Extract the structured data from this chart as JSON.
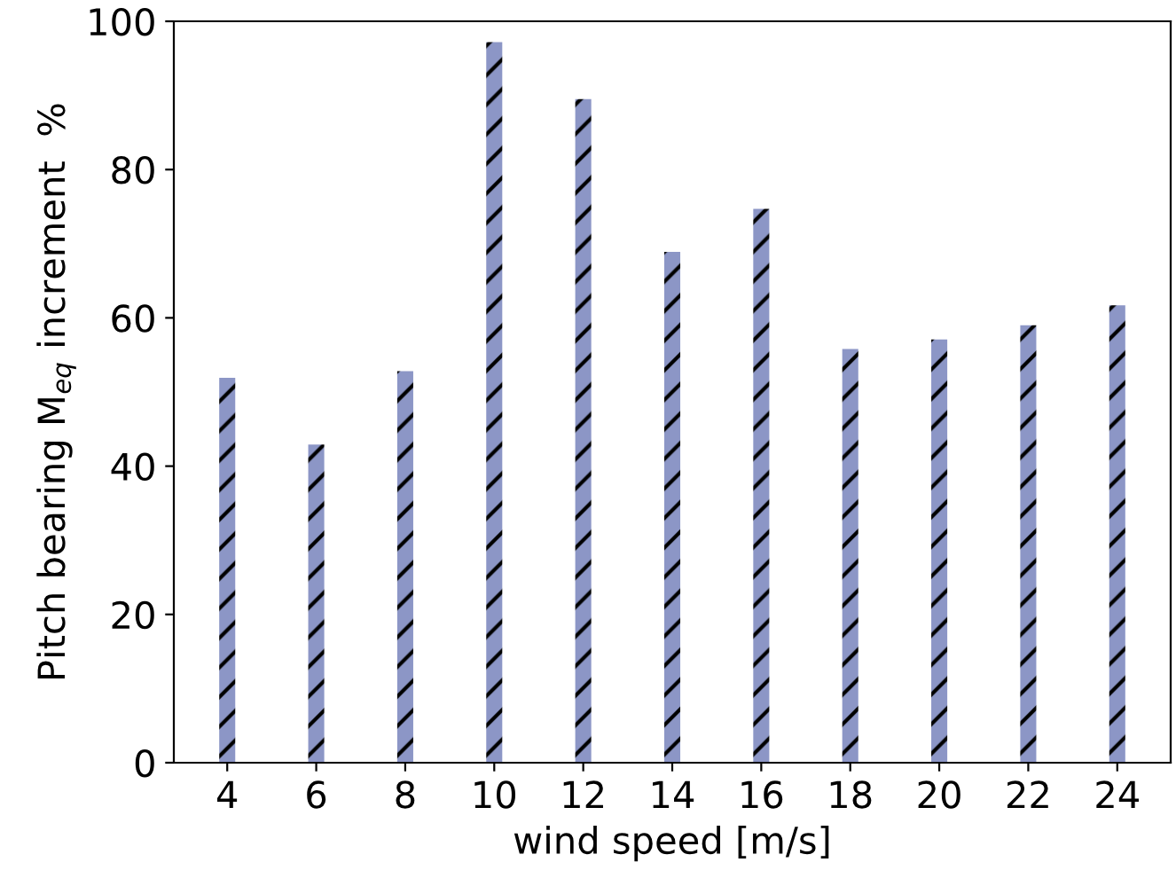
{
  "chart_data": {
    "type": "bar",
    "xlabel": "wind speed [m/s]",
    "ylabel": "Pitch bearing M$_{eq}$ increment  %",
    "categories": [
      "4",
      "6",
      "8",
      "10",
      "12",
      "14",
      "16",
      "18",
      "20",
      "22",
      "24"
    ],
    "values": [
      51.9,
      42.9,
      52.8,
      97.2,
      89.5,
      68.9,
      74.7,
      55.8,
      57.1,
      59.0,
      61.7
    ],
    "color": "#8c96c6",
    "ylim": [
      0,
      100
    ],
    "yticks": [
      0,
      20,
      40,
      60,
      80,
      100
    ],
    "grid": false
  }
}
